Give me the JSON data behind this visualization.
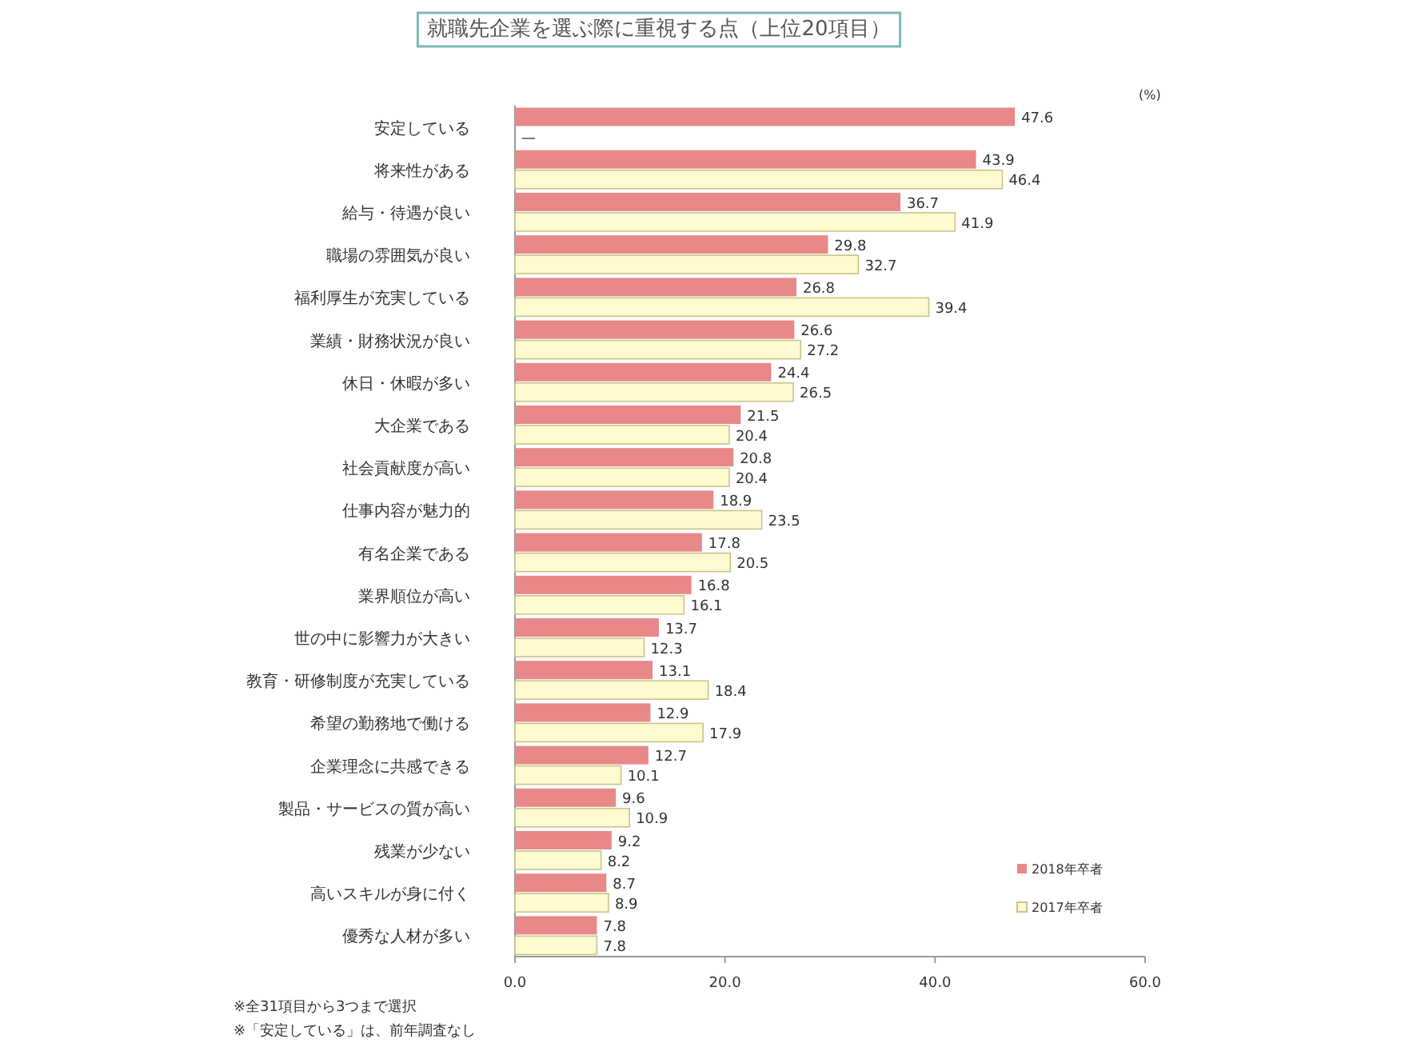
{
  "chart_data": {
    "type": "bar",
    "orientation": "horizontal",
    "title": "就職先企業を選ぶ際に重視する点（上位20項目）",
    "categories": [
      "安定している",
      "将来性がある",
      "給与・待遇が良い",
      "職場の雰囲気が良い",
      "福利厚生が充実している",
      "業績・財務状況が良い",
      "休日・休暇が多い",
      "大企業である",
      "社会貢献度が高い",
      "仕事内容が魅力的",
      "有名企業である",
      "業界順位が高い",
      "世の中に影響力が大きい",
      "教育・研修制度が充実している",
      "希望の勤務地で働ける",
      "企業理念に共感できる",
      "製品・サービスの質が高い",
      "残業が少ない",
      "高いスキルが身に付く",
      "優秀な人材が多い"
    ],
    "series": [
      {
        "name": "2018年卒者",
        "color": "#e88888",
        "values": [
          47.6,
          43.9,
          36.7,
          29.8,
          26.8,
          26.6,
          24.4,
          21.5,
          20.8,
          18.9,
          17.8,
          16.8,
          13.7,
          13.1,
          12.9,
          12.7,
          9.6,
          9.2,
          8.7,
          7.8
        ],
        "value_labels": [
          "47.6",
          "43.9",
          "36.7",
          "29.8",
          "26.8",
          "26.6",
          "24.4",
          "21.5",
          "20.8",
          "18.9",
          "17.8",
          "16.8",
          "13.7",
          "13.1",
          "12.9",
          "12.7",
          "9.6",
          "9.2",
          "8.7",
          "7.8"
        ]
      },
      {
        "name": "2017年卒者",
        "color": "#fffad0",
        "values": [
          null,
          46.4,
          41.9,
          32.7,
          39.4,
          27.2,
          26.5,
          20.4,
          20.4,
          23.5,
          20.5,
          16.1,
          12.3,
          18.4,
          17.9,
          10.1,
          10.9,
          8.2,
          8.9,
          7.8
        ],
        "value_labels": [
          "—",
          "46.4",
          "41.9",
          "32.7",
          "39.4",
          "27.2",
          "26.5",
          "20.4",
          "20.4",
          "23.5",
          "20.5",
          "16.1",
          "12.3",
          "18.4",
          "17.9",
          "10.1",
          "10.9",
          "8.2",
          "8.9",
          "7.8"
        ]
      }
    ],
    "xlim": [
      0,
      60
    ],
    "xticks": [
      {
        "value": 0,
        "label": "0.0"
      },
      {
        "value": 20,
        "label": "20.0"
      },
      {
        "value": 40,
        "label": "40.0"
      },
      {
        "value": 60,
        "label": "60.0"
      }
    ],
    "legend": "bottom right",
    "annotations": [
      "(%)",
      "※全31項目から3つまで選択",
      "※「安定している」は、前年調査なし"
    ]
  }
}
